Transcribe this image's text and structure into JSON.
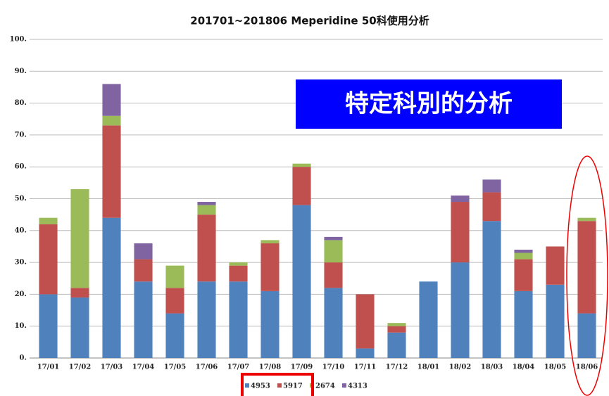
{
  "chart_data": {
    "type": "stacked_bar",
    "title": "201701~201806 Meperidine 50科使用分析",
    "annotation": "特定科別的分析",
    "categories": [
      "17/01",
      "17/02",
      "17/03",
      "17/04",
      "17/05",
      "17/06",
      "17/07",
      "17/08",
      "17/09",
      "17/10",
      "17/11",
      "17/12",
      "18/01",
      "18/02",
      "18/03",
      "18/04",
      "18/05",
      "18/06"
    ],
    "series": [
      {
        "name": "4953",
        "color": "#4f81bd",
        "values": [
          20,
          19,
          44,
          24,
          14,
          24,
          24,
          21,
          48,
          22,
          3,
          8,
          24,
          30,
          43,
          21,
          23,
          14
        ]
      },
      {
        "name": "5917",
        "color": "#c0504d",
        "values": [
          22,
          3,
          29,
          7,
          8,
          21,
          5,
          15,
          12,
          8,
          17,
          2,
          0,
          19,
          9,
          10,
          12,
          29
        ]
      },
      {
        "name": "2674",
        "color": "#9bbb59",
        "values": [
          2,
          31,
          3,
          0,
          7,
          3,
          1,
          1,
          1,
          7,
          0,
          1,
          0,
          0,
          0,
          2,
          0,
          1
        ]
      },
      {
        "name": "4313",
        "color": "#8064a2",
        "values": [
          0,
          0,
          10,
          5,
          0,
          1,
          0,
          0,
          0,
          1,
          0,
          0,
          0,
          2,
          4,
          1,
          0,
          0
        ]
      }
    ],
    "ylim": [
      0,
      100
    ],
    "yticks": [
      {
        "value": 0,
        "label": "0."
      },
      {
        "value": 10,
        "label": "10."
      },
      {
        "value": 20,
        "label": "20."
      },
      {
        "value": 30,
        "label": "30."
      },
      {
        "value": 40,
        "label": "40."
      },
      {
        "value": 50,
        "label": "50."
      },
      {
        "value": 60,
        "label": "60."
      },
      {
        "value": 70,
        "label": "70."
      },
      {
        "value": 80,
        "label": "80."
      },
      {
        "value": 90,
        "label": "90."
      },
      {
        "value": 100,
        "label": "100."
      }
    ],
    "grid": true
  }
}
